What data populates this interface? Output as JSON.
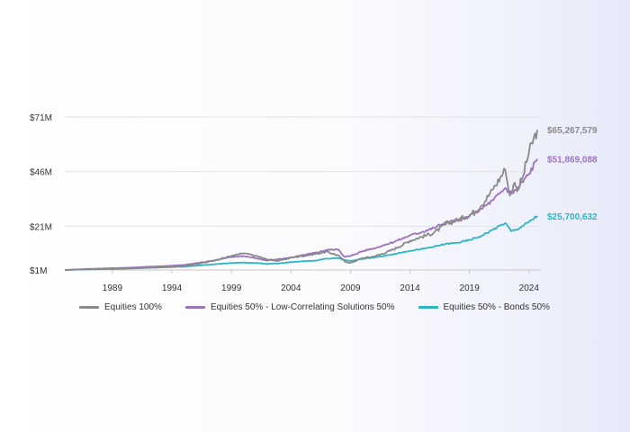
{
  "chart_data": {
    "type": "line",
    "title": "",
    "xlabel": "",
    "ylabel": "",
    "xlim": [
      1985,
      2025
    ],
    "ylim": [
      1,
      71
    ],
    "y_ticks": [
      {
        "value": 1,
        "label": "$1M"
      },
      {
        "value": 21,
        "label": "$21M"
      },
      {
        "value": 46,
        "label": "$46M"
      },
      {
        "value": 71,
        "label": "$71M"
      }
    ],
    "x_ticks": [
      {
        "value": 1989,
        "label": "1989"
      },
      {
        "value": 1994,
        "label": "1994"
      },
      {
        "value": 1999,
        "label": "1999"
      },
      {
        "value": 2004,
        "label": "2004"
      },
      {
        "value": 2009,
        "label": "2009"
      },
      {
        "value": 2014,
        "label": "2014"
      },
      {
        "value": 2019,
        "label": "2019"
      },
      {
        "value": 2024,
        "label": "2024"
      }
    ],
    "grid": "horizontal",
    "legend_position": "bottom-left",
    "series": [
      {
        "name": "Equities 100%",
        "color": "#8a8a8a",
        "end_label": "$65,267,579",
        "points": [
          [
            1985,
            1.0
          ],
          [
            1987,
            1.4
          ],
          [
            1990,
            1.6
          ],
          [
            1993,
            2.2
          ],
          [
            1995,
            2.8
          ],
          [
            1997,
            4.6
          ],
          [
            1999,
            7.4
          ],
          [
            2000,
            8.6
          ],
          [
            2001,
            7.6
          ],
          [
            2002,
            5.8
          ],
          [
            2003,
            5.2
          ],
          [
            2004,
            6.6
          ],
          [
            2006,
            8.3
          ],
          [
            2007,
            9.4
          ],
          [
            2008,
            7.6
          ],
          [
            2008.5,
            5.0
          ],
          [
            2009,
            4.2
          ],
          [
            2010,
            6.4
          ],
          [
            2011,
            7.2
          ],
          [
            2012,
            9.0
          ],
          [
            2013,
            11.4
          ],
          [
            2014,
            14.4
          ],
          [
            2015,
            16.2
          ],
          [
            2016,
            18.0
          ],
          [
            2017,
            21.8
          ],
          [
            2018,
            24.0
          ],
          [
            2019,
            26.0
          ],
          [
            2020,
            30.5
          ],
          [
            2021,
            38.0
          ],
          [
            2022,
            47.0
          ],
          [
            2022.4,
            35.0
          ],
          [
            2022.8,
            41.0
          ],
          [
            2023,
            37.0
          ],
          [
            2023.5,
            44.0
          ],
          [
            2024,
            55.0
          ],
          [
            2024.7,
            65.2
          ]
        ]
      },
      {
        "name": "Equities 50% - Low-Correlating Solutions 50%",
        "color": "#9d72bf",
        "end_label": "$51,869,088",
        "points": [
          [
            1985,
            1.0
          ],
          [
            1987,
            1.5
          ],
          [
            1990,
            2.0
          ],
          [
            1993,
            2.7
          ],
          [
            1995,
            3.3
          ],
          [
            1997,
            4.9
          ],
          [
            1999,
            6.9
          ],
          [
            2000,
            7.4
          ],
          [
            2001,
            6.5
          ],
          [
            2002,
            5.3
          ],
          [
            2003,
            5.9
          ],
          [
            2004,
            6.7
          ],
          [
            2006,
            8.8
          ],
          [
            2007,
            10.2
          ],
          [
            2008,
            10.4
          ],
          [
            2008.5,
            7.0
          ],
          [
            2009,
            7.4
          ],
          [
            2010,
            9.6
          ],
          [
            2011,
            11.0
          ],
          [
            2012,
            12.7
          ],
          [
            2013,
            14.6
          ],
          [
            2014,
            16.8
          ],
          [
            2015,
            18.4
          ],
          [
            2016,
            20.2
          ],
          [
            2017,
            22.8
          ],
          [
            2018,
            23.6
          ],
          [
            2019,
            25.5
          ],
          [
            2020,
            29.0
          ],
          [
            2021,
            33.0
          ],
          [
            2022,
            38.5
          ],
          [
            2022.5,
            36.0
          ],
          [
            2023,
            38.0
          ],
          [
            2024,
            45.0
          ],
          [
            2024.7,
            51.8
          ]
        ]
      },
      {
        "name": "Equities 50% - Bonds 50%",
        "color": "#2db5c4",
        "end_label": "$25,700,632",
        "points": [
          [
            1985,
            1.0
          ],
          [
            1987,
            1.3
          ],
          [
            1990,
            1.6
          ],
          [
            1993,
            2.2
          ],
          [
            1995,
            2.5
          ],
          [
            1997,
            3.4
          ],
          [
            1999,
            4.2
          ],
          [
            2000,
            4.4
          ],
          [
            2001,
            4.2
          ],
          [
            2002,
            3.8
          ],
          [
            2003,
            4.0
          ],
          [
            2004,
            4.6
          ],
          [
            2006,
            5.3
          ],
          [
            2007,
            6.2
          ],
          [
            2008,
            6.4
          ],
          [
            2008.5,
            5.6
          ],
          [
            2009,
            5.2
          ],
          [
            2010,
            6.1
          ],
          [
            2011,
            6.7
          ],
          [
            2012,
            7.6
          ],
          [
            2013,
            8.7
          ],
          [
            2014,
            9.8
          ],
          [
            2015,
            10.6
          ],
          [
            2016,
            11.6
          ],
          [
            2017,
            12.9
          ],
          [
            2018,
            13.4
          ],
          [
            2019,
            14.7
          ],
          [
            2020,
            16.6
          ],
          [
            2021,
            19.5
          ],
          [
            2022,
            22.5
          ],
          [
            2022.5,
            18.8
          ],
          [
            2023,
            19.5
          ],
          [
            2024,
            23.0
          ],
          [
            2024.7,
            25.7
          ]
        ]
      }
    ]
  }
}
